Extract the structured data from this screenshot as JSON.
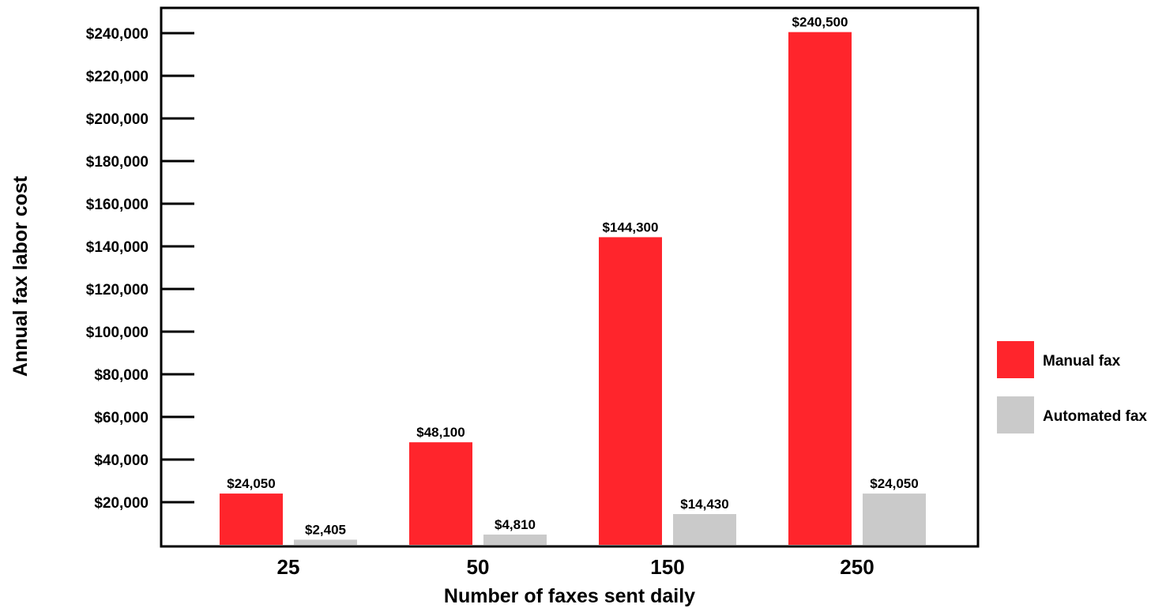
{
  "chart_data": {
    "type": "bar",
    "categories": [
      "25",
      "50",
      "150",
      "250"
    ],
    "series": [
      {
        "name": "Manual fax",
        "color": "#ff252c",
        "values": [
          24050,
          48100,
          144300,
          240500
        ],
        "labels": [
          "$24,050",
          "$48,100",
          "$144,300",
          "$240,500"
        ]
      },
      {
        "name": "Automated fax",
        "color": "#cacaca",
        "values": [
          2405,
          4810,
          14430,
          24050
        ],
        "labels": [
          "$2,405",
          "$4,810",
          "$14,430",
          "$24,050"
        ]
      }
    ],
    "xlabel": "Number of faxes sent daily",
    "ylabel": "Annual fax labor cost",
    "ylim": [
      0,
      240000
    ],
    "yticks": [
      20000,
      40000,
      60000,
      80000,
      100000,
      120000,
      140000,
      160000,
      180000,
      200000,
      220000,
      240000
    ],
    "ytick_labels": [
      "$20,000",
      "$40,000",
      "$60,000",
      "$80,000",
      "$100,000",
      "$120,000",
      "$140,000",
      "$160,000",
      "$180,000",
      "$200,000",
      "$220,000",
      "$240,000"
    ],
    "grid": false,
    "legend_position": "right"
  }
}
